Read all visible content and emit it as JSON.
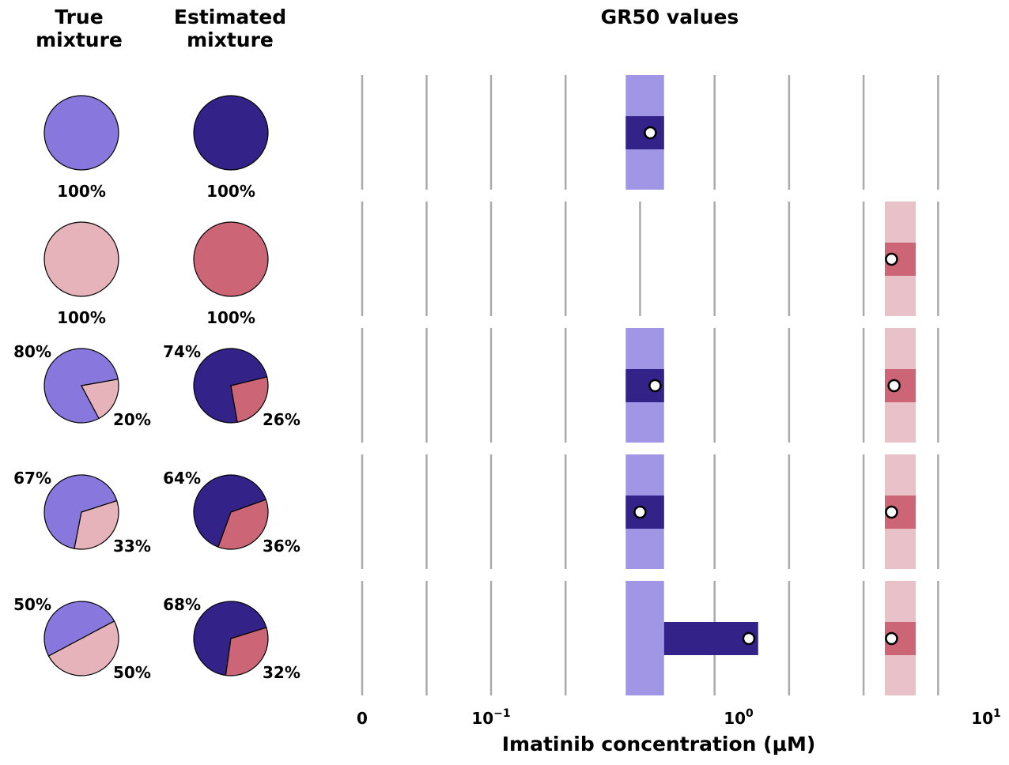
{
  "headers": {
    "true_mixture": [
      "True",
      "mixture"
    ],
    "estimated_mixture": [
      "Estimated",
      "mixture"
    ],
    "gr50": "GR50 values"
  },
  "colors": {
    "blue_light": "#8878dd",
    "blue_dark": "#332288",
    "blue_band": "#a195e5",
    "red_light": "#e6b3bb",
    "red_dark": "#cc6677",
    "red_band": "#e9c2c9",
    "grid": "#aaaaaa"
  },
  "chart_data": {
    "type": "scatter",
    "title": "GR50 values",
    "xlabel": "Imatinib concentration (μM)",
    "xscale": "symlog",
    "xlim": [
      0,
      10
    ],
    "x_ticks": [
      {
        "value": 0,
        "label": "0",
        "sup": ""
      },
      {
        "value": 0.1,
        "label": "10",
        "sup": "−1"
      },
      {
        "value": 1,
        "label": "10",
        "sup": "0"
      },
      {
        "value": 10,
        "label": "10",
        "sup": "1"
      }
    ],
    "grid_lines": [
      0,
      0.05,
      0.1,
      0.2,
      0.4,
      0.8,
      1.6,
      3.2,
      6.4
    ],
    "population_bands": {
      "blue": [
        0.35,
        0.5
      ],
      "red": [
        3.9,
        5.2
      ]
    },
    "rows": [
      {
        "true_mixture": [
          {
            "pop": "blue",
            "value": 100,
            "label": "100%"
          }
        ],
        "estimated_mixture": [
          {
            "pop": "blue",
            "value": 100,
            "label": "100%"
          }
        ],
        "gr50": [
          {
            "pop": "blue",
            "ci": [
              0.35,
              0.5
            ],
            "estimate": 0.44
          }
        ]
      },
      {
        "true_mixture": [
          {
            "pop": "red",
            "value": 100,
            "label": "100%"
          }
        ],
        "estimated_mixture": [
          {
            "pop": "red",
            "value": 100,
            "label": "100%"
          }
        ],
        "gr50": [
          {
            "pop": "red",
            "ci": [
              3.9,
              5.2
            ],
            "estimate": 4.15
          }
        ]
      },
      {
        "true_mixture": [
          {
            "pop": "blue",
            "value": 80,
            "label": "80%"
          },
          {
            "pop": "red",
            "value": 20,
            "label": "20%"
          }
        ],
        "estimated_mixture": [
          {
            "pop": "blue",
            "value": 74,
            "label": "74%"
          },
          {
            "pop": "red",
            "value": 26,
            "label": "26%"
          }
        ],
        "gr50": [
          {
            "pop": "blue",
            "ci": [
              0.35,
              0.5
            ],
            "estimate": 0.46
          },
          {
            "pop": "red",
            "ci": [
              3.9,
              5.2
            ],
            "estimate": 4.25
          }
        ]
      },
      {
        "true_mixture": [
          {
            "pop": "blue",
            "value": 67,
            "label": "67%"
          },
          {
            "pop": "red",
            "value": 33,
            "label": "33%"
          }
        ],
        "estimated_mixture": [
          {
            "pop": "blue",
            "value": 64,
            "label": "64%"
          },
          {
            "pop": "red",
            "value": 36,
            "label": "36%"
          }
        ],
        "gr50": [
          {
            "pop": "blue",
            "ci": [
              0.35,
              0.5
            ],
            "estimate": 0.4
          },
          {
            "pop": "red",
            "ci": [
              3.9,
              5.2
            ],
            "estimate": 4.15
          }
        ]
      },
      {
        "true_mixture": [
          {
            "pop": "blue",
            "value": 50,
            "label": "50%"
          },
          {
            "pop": "red",
            "value": 50,
            "label": "50%"
          }
        ],
        "estimated_mixture": [
          {
            "pop": "blue",
            "value": 68,
            "label": "68%"
          },
          {
            "pop": "red",
            "value": 32,
            "label": "32%"
          }
        ],
        "gr50": [
          {
            "pop": "blue",
            "ci": [
              0.5,
              1.2
            ],
            "estimate": 1.1
          },
          {
            "pop": "red",
            "ci": [
              3.9,
              5.2
            ],
            "estimate": 4.15
          }
        ]
      }
    ]
  }
}
